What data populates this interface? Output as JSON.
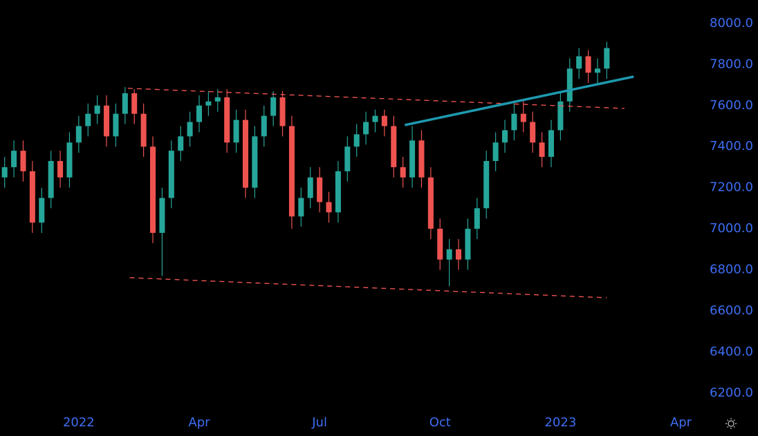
{
  "chart_data": {
    "type": "candlestick",
    "categories": [
      null,
      null,
      null,
      null,
      null,
      null,
      null,
      null,
      "2022",
      null,
      null,
      null,
      null,
      null,
      null,
      null,
      null,
      null,
      null,
      null,
      null,
      "Apr",
      null,
      null,
      null,
      null,
      null,
      null,
      null,
      null,
      null,
      null,
      null,
      null,
      "Jul",
      null,
      null,
      null,
      null,
      null,
      null,
      null,
      null,
      null,
      null,
      null,
      null,
      "Oct",
      null,
      null,
      null,
      null,
      null,
      null,
      null,
      null,
      null,
      null,
      null,
      null,
      "2023",
      null,
      null,
      null,
      null,
      null,
      null,
      null,
      null,
      null,
      null,
      null,
      null,
      "Apr",
      null,
      null
    ],
    "open": [
      7250,
      7300,
      7380,
      7280,
      7030,
      7150,
      7330,
      7250,
      7420,
      7500,
      7560,
      7600,
      7450,
      7560,
      7660,
      7560,
      7400,
      6980,
      7150,
      7380,
      7450,
      7520,
      7600,
      7620,
      7640,
      7420,
      7530,
      7200,
      7450,
      7550,
      7640,
      7500,
      7060,
      7150,
      7250,
      7130,
      7080,
      7280,
      7400,
      7460,
      7520,
      7550,
      7500,
      7300,
      7250,
      7430,
      7250,
      7000,
      6850,
      6900,
      6850,
      7000,
      7100,
      7330,
      7420,
      7480,
      7560,
      7520,
      7420,
      7350,
      7480,
      7620,
      7780,
      7840,
      7760,
      7780,
      null,
      null,
      null,
      null,
      null,
      null,
      null,
      null,
      null,
      null
    ],
    "high": [
      7350,
      7430,
      7430,
      7330,
      7200,
      7380,
      7380,
      7470,
      7550,
      7610,
      7650,
      7650,
      7610,
      7690,
      7680,
      7610,
      7450,
      7200,
      7430,
      7500,
      7570,
      7650,
      7670,
      7680,
      7680,
      7580,
      7580,
      7500,
      7600,
      7670,
      7670,
      7550,
      7200,
      7300,
      7300,
      7180,
      7330,
      7450,
      7510,
      7570,
      7580,
      7580,
      7550,
      7350,
      7500,
      7480,
      7300,
      7050,
      6950,
      6950,
      7050,
      7150,
      7380,
      7470,
      7530,
      7610,
      7630,
      7570,
      7470,
      7530,
      7670,
      7830,
      7880,
      7870,
      7830,
      7910,
      null,
      null,
      null,
      null,
      null,
      null,
      null,
      null,
      null,
      null
    ],
    "low": [
      7200,
      7250,
      7230,
      6980,
      6980,
      7100,
      7200,
      7200,
      7370,
      7450,
      7510,
      7400,
      7400,
      7510,
      7510,
      7350,
      6930,
      6770,
      7100,
      7330,
      7400,
      7470,
      7550,
      7570,
      7370,
      7370,
      7150,
      7150,
      7400,
      7500,
      7450,
      7000,
      7010,
      7100,
      7080,
      7030,
      7030,
      7230,
      7350,
      7410,
      7470,
      7450,
      7250,
      7200,
      7200,
      7200,
      6950,
      6800,
      6720,
      6800,
      6800,
      6950,
      7050,
      7280,
      7370,
      7430,
      7470,
      7370,
      7300,
      7300,
      7430,
      7570,
      7730,
      7710,
      7710,
      7730,
      null,
      null,
      null,
      null,
      null,
      null,
      null,
      null,
      null,
      null
    ],
    "close": [
      7300,
      7380,
      7280,
      7030,
      7150,
      7330,
      7250,
      7420,
      7500,
      7560,
      7600,
      7450,
      7560,
      7660,
      7560,
      7400,
      6980,
      7150,
      7380,
      7450,
      7520,
      7600,
      7620,
      7640,
      7420,
      7530,
      7200,
      7450,
      7550,
      7640,
      7500,
      7060,
      7150,
      7250,
      7130,
      7080,
      7280,
      7400,
      7460,
      7520,
      7550,
      7500,
      7300,
      7250,
      7430,
      7250,
      7000,
      6850,
      6900,
      6850,
      7000,
      7100,
      7330,
      7420,
      7480,
      7560,
      7520,
      7420,
      7350,
      7480,
      7620,
      7780,
      7840,
      7760,
      7780,
      7880,
      null,
      null,
      null,
      null,
      null,
      null,
      null,
      null,
      null,
      null
    ],
    "up_color": "#26a69a",
    "down_color": "#ef5350",
    "lines": [
      {
        "x": [
          13.3,
          66.9
        ],
        "y": [
          7684,
          7586
        ],
        "color": "#ef5350",
        "dashed": true
      },
      {
        "x": [
          13.5,
          65.0
        ],
        "y": [
          6762,
          6664
        ],
        "color": "#ef5350",
        "dashed": true
      },
      {
        "x": [
          43.2,
          67.9
        ],
        "y": [
          7505,
          7741
        ],
        "color": "#1e9ab0",
        "dashed": false
      }
    ],
    "ylim": [
      6112,
      8114
    ],
    "yticks": [
      {
        "value": 6200,
        "label": "6200.0"
      },
      {
        "value": 6400,
        "label": "6400.0"
      },
      {
        "value": 6600,
        "label": "6600.0"
      },
      {
        "value": 6800,
        "label": "6800.0"
      },
      {
        "value": 7000,
        "label": "7000.0"
      },
      {
        "value": 7200,
        "label": "7200.0"
      },
      {
        "value": 7400,
        "label": "7400.0"
      },
      {
        "value": 7600,
        "label": "7600.0"
      },
      {
        "value": 7800,
        "label": "7800.0"
      },
      {
        "value": 8000,
        "label": "8000.0"
      }
    ],
    "grid": false
  }
}
